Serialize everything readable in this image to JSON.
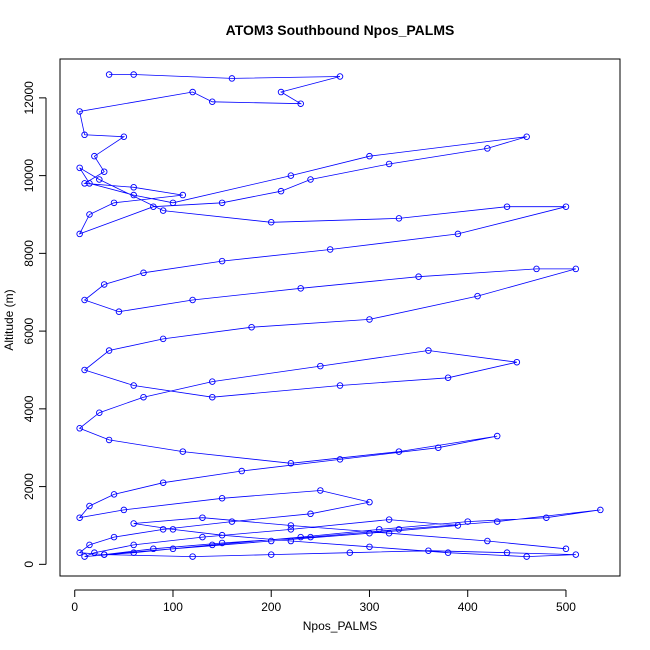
{
  "chart_data": {
    "type": "line",
    "title": "ATOM3 Southbound Npos_PALMS",
    "xlabel": "Npos_PALMS",
    "ylabel": "Altitude (m)",
    "xlim": [
      -15,
      555
    ],
    "ylim": [
      -300,
      13000
    ],
    "x_ticks": [
      0,
      100,
      200,
      300,
      400,
      500
    ],
    "y_ticks": [
      0,
      2000,
      4000,
      6000,
      8000,
      10000,
      12000
    ],
    "grid": false,
    "legend": "none",
    "marker": "open-circle",
    "series_color": "#0000ff",
    "series": [
      {
        "x": [
          35,
          60,
          160,
          270,
          210,
          230,
          140,
          120,
          5,
          10,
          50,
          20,
          30,
          10,
          60,
          110,
          40,
          15,
          5,
          80,
          150,
          210,
          240,
          320,
          420,
          460,
          300,
          220,
          100,
          60,
          15,
          5,
          25,
          90,
          200,
          330,
          440,
          500,
          390,
          260,
          150,
          70,
          30,
          10,
          45,
          120,
          230,
          350,
          470,
          510,
          410,
          300,
          180,
          90,
          35,
          10,
          60,
          140,
          270,
          380,
          450,
          360,
          250,
          140,
          70,
          25,
          5,
          35,
          110,
          220,
          330,
          430,
          370,
          270,
          170,
          90,
          40,
          15,
          5,
          50,
          150,
          250,
          300,
          240,
          160,
          90,
          40,
          15,
          5,
          30,
          100,
          200,
          300,
          390,
          320,
          220,
          130,
          60,
          20,
          10,
          60,
          140,
          230,
          310,
          400,
          480,
          535,
          430,
          330,
          240,
          150,
          80,
          30,
          120,
          200,
          280,
          360,
          440,
          510,
          460,
          380,
          300,
          220,
          150,
          100,
          60,
          130,
          220,
          320,
          420,
          500
        ],
        "y": [
          12600,
          12600,
          12500,
          12550,
          12150,
          11850,
          11900,
          12150,
          11650,
          11050,
          11000,
          10500,
          10100,
          9800,
          9700,
          9500,
          9300,
          9000,
          8500,
          9200,
          9300,
          9600,
          9900,
          10300,
          10700,
          11000,
          10500,
          10000,
          9300,
          9500,
          9800,
          10200,
          9900,
          9100,
          8800,
          8900,
          9200,
          9200,
          8500,
          8100,
          7800,
          7500,
          7200,
          6800,
          6500,
          6800,
          7100,
          7400,
          7600,
          7600,
          6900,
          6300,
          6100,
          5800,
          5500,
          5000,
          4600,
          4300,
          4600,
          4800,
          5200,
          5500,
          5100,
          4700,
          4300,
          3900,
          3500,
          3200,
          2900,
          2600,
          2900,
          3300,
          3000,
          2700,
          2400,
          2100,
          1800,
          1500,
          1200,
          1400,
          1700,
          1900,
          1600,
          1300,
          1100,
          900,
          700,
          500,
          300,
          250,
          400,
          600,
          800,
          1000,
          1150,
          900,
          700,
          500,
          300,
          200,
          300,
          500,
          700,
          900,
          1100,
          1200,
          1400,
          1100,
          900,
          700,
          550,
          400,
          250,
          200,
          250,
          300,
          350,
          300,
          250,
          200,
          300,
          450,
          600,
          750,
          900,
          1050,
          1200,
          1000,
          800,
          600,
          400
        ]
      }
    ]
  }
}
